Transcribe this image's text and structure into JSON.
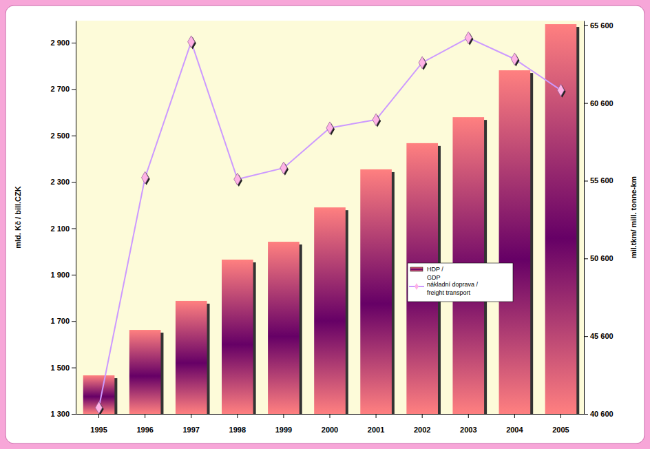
{
  "chart_data": {
    "type": "bar",
    "categories": [
      "1995",
      "1996",
      "1997",
      "1998",
      "1999",
      "2000",
      "2001",
      "2002",
      "2003",
      "2004",
      "2005"
    ],
    "y_label": "mld. Kč / bill.CZK",
    "y2_label": "mil.tkm/ mill. tonne-km",
    "ylim": [
      1300,
      2995
    ],
    "yticks": [
      {
        "value": 1300,
        "label": "1 300"
      },
      {
        "value": 1500,
        "label": "1 500"
      },
      {
        "value": 1700,
        "label": "1 700"
      },
      {
        "value": 1900,
        "label": "1 900"
      },
      {
        "value": 2100,
        "label": "2 100"
      },
      {
        "value": 2300,
        "label": "2 300"
      },
      {
        "value": 2500,
        "label": "2 500"
      },
      {
        "value": 2700,
        "label": "2 700"
      },
      {
        "value": 2900,
        "label": "2 900"
      }
    ],
    "y2lim": [
      40600,
      65900
    ],
    "y2ticks": [
      {
        "value": 40600,
        "label": "40 600"
      },
      {
        "value": 45600,
        "label": "45 600"
      },
      {
        "value": 50600,
        "label": "50 600"
      },
      {
        "value": 55600,
        "label": "55 600"
      },
      {
        "value": 60600,
        "label": "60 600"
      },
      {
        "value": 65600,
        "label": "65 600"
      }
    ],
    "legend": "right",
    "series": [
      {
        "name": "HDP / GDP",
        "type": "bar",
        "color": "#ff8080",
        "values": [
          1466,
          1662,
          1787,
          1965,
          2042,
          2190,
          2354,
          2467,
          2579,
          2781,
          2980
        ]
      },
      {
        "name": "nákladní doprava / freight transport",
        "type": "line",
        "axis": "y2",
        "color": "#cc99ff",
        "marker": "diamond",
        "values": [
          41000,
          55800,
          64540,
          55700,
          56420,
          59000,
          59530,
          63200,
          64800,
          63430,
          61430
        ]
      }
    ]
  }
}
